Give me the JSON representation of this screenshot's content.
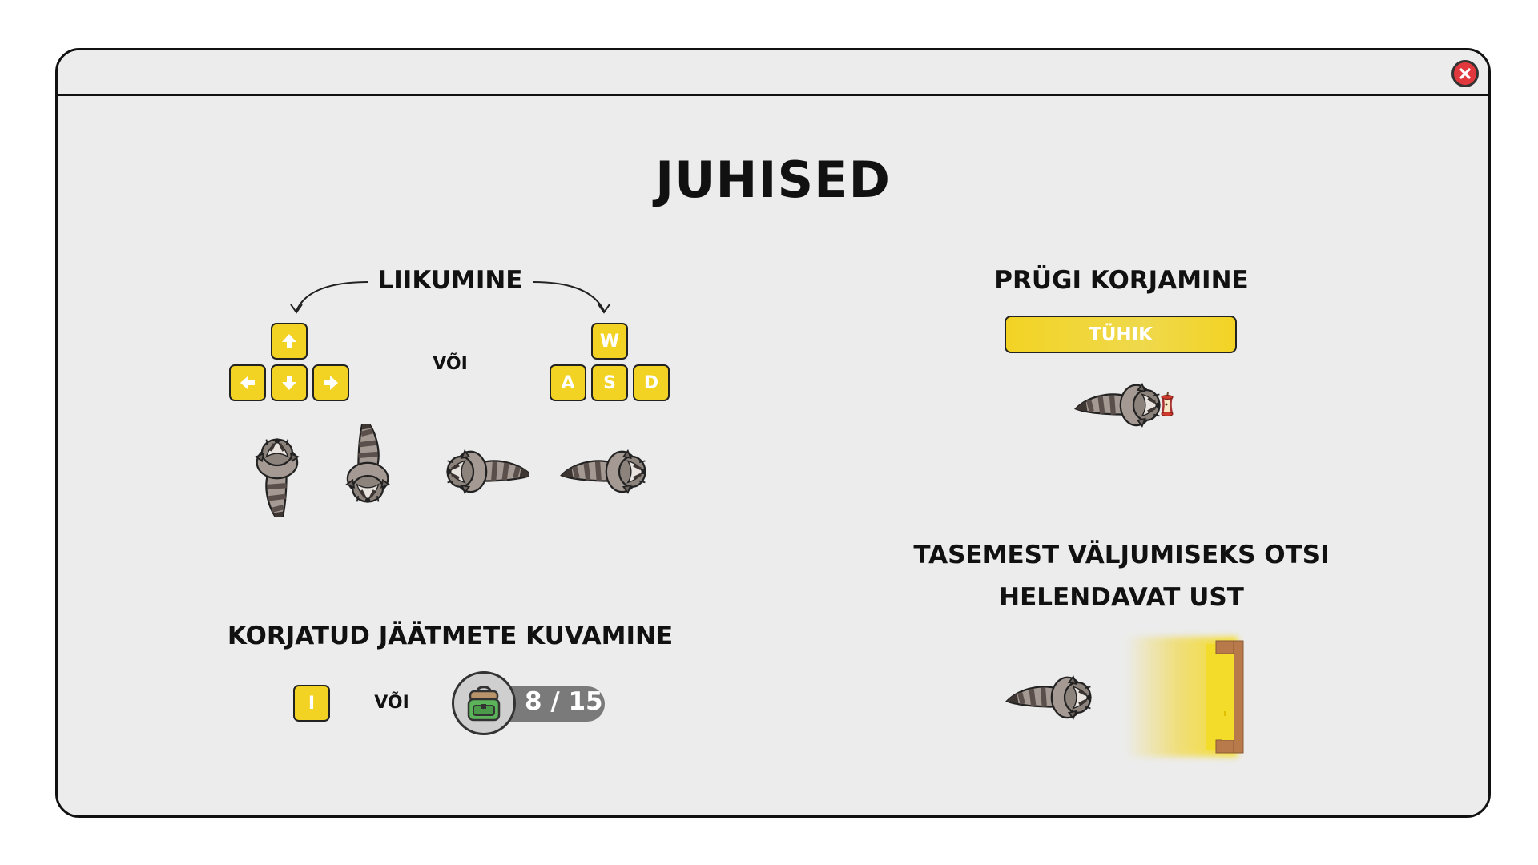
{
  "title": "JUHISED",
  "movement": {
    "heading": "LIIKUMINE",
    "or": "VÕI",
    "arrow_keys": [
      "up-arrow-icon",
      "left-arrow-icon",
      "down-arrow-icon",
      "right-arrow-icon"
    ],
    "wasd_keys": {
      "w": "W",
      "a": "A",
      "s": "S",
      "d": "D"
    }
  },
  "pickup": {
    "heading": "PRÜGI KORJAMINE",
    "key_label": "TÜHIK"
  },
  "inventory": {
    "heading": "KORJATUD JÄÄTMETE KUVAMINE",
    "key_label": "I",
    "or": "VÕI",
    "count_text": "8 / 15",
    "collected": 8,
    "total": 15
  },
  "exit": {
    "heading_line1": "TASEMEST VÄLJUMISEKS OTSI",
    "heading_line2": "HELENDAVAT UST"
  },
  "colors": {
    "key_yellow": "#f2d324",
    "panel_bg": "#ececec",
    "close_red": "#e0383c",
    "badge_gray": "#7a7a7a",
    "door_brown": "#b87a4b"
  }
}
